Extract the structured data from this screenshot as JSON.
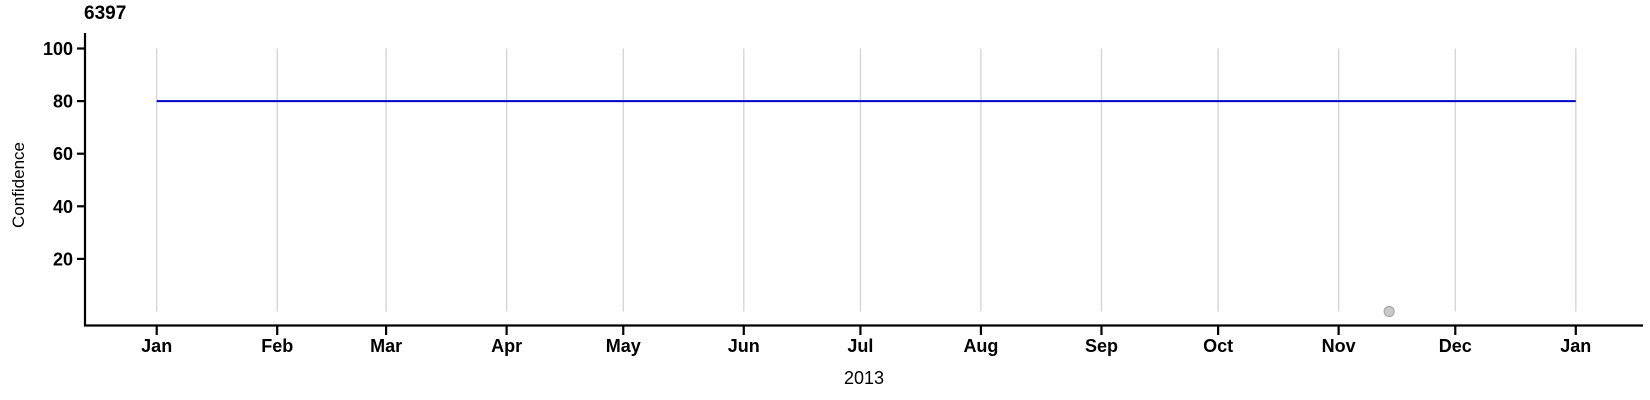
{
  "chart": {
    "title": "6397",
    "xlabel": "2013",
    "ylabel": "Confidence"
  },
  "chart_data": {
    "type": "line",
    "title": "6397",
    "xlabel": "2013",
    "ylabel": "Confidence",
    "x_axis": {
      "start_date": "2013-01-01",
      "end_date": "2014-01-01",
      "tick_labels": [
        "Jan",
        "Feb",
        "Mar",
        "Apr",
        "May",
        "Jun",
        "Jul",
        "Aug",
        "Sep",
        "Oct",
        "Nov",
        "Dec",
        "Jan"
      ],
      "tick_days": [
        0,
        31,
        59,
        90,
        120,
        151,
        181,
        212,
        243,
        273,
        304,
        334,
        365
      ],
      "domain_days": [
        0,
        365
      ]
    },
    "y_axis": {
      "tick_values": [
        20,
        40,
        60,
        80,
        100
      ],
      "tick_labels": [
        "20",
        "40",
        "60",
        "80",
        "100"
      ],
      "ylim": [
        0,
        100
      ]
    },
    "grid": {
      "vertical": true,
      "horizontal": false,
      "color": "#d6d6d6",
      "span_values": [
        0,
        100
      ]
    },
    "series": [
      {
        "name": "confidence",
        "type": "line",
        "color": "#0000cd",
        "width": 2,
        "points": [
          {
            "day": 0,
            "value": 80
          },
          {
            "day": 365,
            "value": 80
          }
        ]
      }
    ],
    "scatter_points": [
      {
        "name": "resolution-point",
        "day": 317,
        "approx_date": "2013-11-14",
        "value": 0,
        "fill": "#c9c9c9",
        "stroke": "#a8a8a8",
        "radius": 5
      }
    ],
    "axis_color": "#000000",
    "legend": "none"
  }
}
